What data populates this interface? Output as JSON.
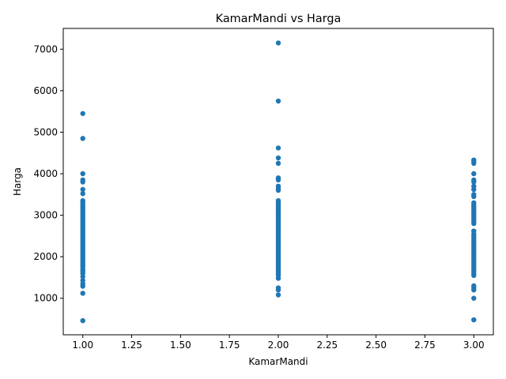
{
  "chart_data": {
    "type": "scatter",
    "title": "KamarMandi vs Harga",
    "xlabel": "KamarMandi",
    "ylabel": "Harga",
    "xlim": [
      0.9,
      3.1
    ],
    "ylim": [
      120,
      7500
    ],
    "xticks": [
      1.0,
      1.25,
      1.5,
      1.75,
      2.0,
      2.25,
      2.5,
      2.75,
      3.0
    ],
    "xtick_labels": [
      "1.00",
      "1.25",
      "1.50",
      "1.75",
      "2.00",
      "2.25",
      "2.50",
      "2.75",
      "3.00"
    ],
    "yticks": [
      1000,
      2000,
      3000,
      4000,
      5000,
      6000,
      7000
    ],
    "ytick_labels": [
      "1000",
      "2000",
      "3000",
      "4000",
      "5000",
      "6000",
      "7000"
    ],
    "grid": false,
    "marker_color": "#1f77b4",
    "series": [
      {
        "x": 1,
        "values": [
          460,
          1120,
          1290,
          1350,
          1430,
          1520,
          1600,
          1650,
          1700,
          1760,
          1800,
          1850,
          1900,
          1950,
          2000,
          2050,
          2100,
          2150,
          2200,
          2250,
          2300,
          2350,
          2400,
          2450,
          2500,
          2550,
          2600,
          2650,
          2700,
          2750,
          2800,
          2850,
          2900,
          2950,
          3000,
          3050,
          3100,
          3150,
          3200,
          3250,
          3300,
          3350,
          3520,
          3620,
          3800,
          3850,
          4000,
          4850,
          5450
        ]
      },
      {
        "x": 2,
        "values": [
          1080,
          1200,
          1250,
          1480,
          1550,
          1600,
          1650,
          1700,
          1750,
          1800,
          1850,
          1900,
          1950,
          2000,
          2050,
          2100,
          2150,
          2200,
          2250,
          2300,
          2350,
          2400,
          2450,
          2500,
          2550,
          2600,
          2650,
          2700,
          2750,
          2800,
          2850,
          2900,
          2950,
          3000,
          3050,
          3100,
          3150,
          3200,
          3250,
          3300,
          3350,
          3600,
          3650,
          3700,
          3850,
          3900,
          4250,
          4380,
          4620,
          5750,
          7150
        ]
      },
      {
        "x": 3,
        "values": [
          480,
          1000,
          1200,
          1250,
          1300,
          1550,
          1600,
          1650,
          1700,
          1750,
          1800,
          1850,
          1900,
          1950,
          2000,
          2050,
          2100,
          2150,
          2200,
          2250,
          2300,
          2350,
          2400,
          2450,
          2500,
          2550,
          2620,
          2800,
          2850,
          2900,
          2950,
          3000,
          3050,
          3100,
          3150,
          3200,
          3250,
          3300,
          3450,
          3500,
          3620,
          3700,
          3800,
          3850,
          4000,
          4250,
          4300,
          4330
        ]
      }
    ]
  }
}
